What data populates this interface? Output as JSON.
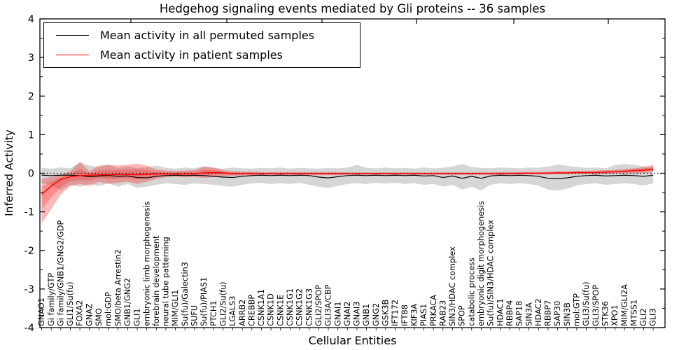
{
  "chart_data": {
    "type": "line",
    "title": "Hedgehog signaling events mediated by Gli proteins -- 36 samples",
    "xlabel": "Cellular Entities",
    "ylabel": "Inferred Activity",
    "ylim": [
      -4,
      4
    ],
    "yticks": [
      -4,
      -3,
      -2,
      -1,
      0,
      1,
      2,
      3,
      4
    ],
    "grid": false,
    "zero_line_style": "dotted",
    "legend_position": "upper left",
    "colors": {
      "permuted": "#000000",
      "patient": "#ff0000",
      "permuted_band": "#808080",
      "patient_band": "#ff0000"
    },
    "top_tick_x": [
      187,
      324,
      460,
      595,
      734,
      869
    ],
    "categories": [
      "GNAO1",
      "Gi family/GTP",
      "Gi family/GNB1/GNG2/GDP",
      "GLI1/Su(fu)",
      "FOXA2",
      "GNAZ",
      "SMO",
      "mol:GDP",
      "SMO/beta Arrestin2",
      "GNB1/GNG2",
      "GLI1",
      "embryonic limb morphogenesis",
      "forebrain development",
      "neural tube patterning",
      "MIM/GLI1",
      "Su(fu)/Galectin3",
      "SUFU",
      "Su(fu)/PIAS1",
      "PTCH1",
      "GLI2/Su(fu)",
      "LGALS3",
      "ARRB2",
      "CREBBP",
      "CSNK1A1",
      "CSNK1D",
      "CSNK1E",
      "CSNK1G1",
      "CSNK1G2",
      "CSNK1G3",
      "GLI2/SPOP",
      "GLI3A/CBP",
      "GNAI1",
      "GNAI2",
      "GNAI3",
      "GNB1",
      "GNG2",
      "GSK3B",
      "IFT172",
      "IFT88",
      "KIF3A",
      "PIAS1",
      "PRKACA",
      "RAB23",
      "SIN3/HDAC complex",
      "SPOP",
      "catabolic process",
      "embryonic digit morphogenesis",
      "Su(fu)/SIN3/HDAC complex",
      "HDAC1",
      "RBBP4",
      "SAP18",
      "SIN3A",
      "HDAC2",
      "RBBP7",
      "SAP30",
      "SIN3B",
      "mol:GTP",
      "GLI3/Su(fu)",
      "GLI3/SPOP",
      "STK36",
      "XPO1",
      "MIM/GLI2A",
      "MTSS1",
      "GLI2",
      "GLI3"
    ],
    "series": [
      {
        "name": "Mean activity in all permuted samples",
        "color": "#000000",
        "values": [
          -0.05,
          -0.06,
          -0.05,
          -0.05,
          -0.06,
          -0.09,
          -0.07,
          -0.06,
          -0.08,
          -0.07,
          -0.11,
          -0.12,
          -0.08,
          -0.06,
          -0.05,
          -0.06,
          -0.05,
          -0.06,
          -0.08,
          -0.1,
          -0.11,
          -0.08,
          -0.06,
          -0.05,
          -0.06,
          -0.05,
          -0.06,
          -0.05,
          -0.06,
          -0.1,
          -0.12,
          -0.09,
          -0.06,
          -0.05,
          -0.06,
          -0.05,
          -0.06,
          -0.05,
          -0.06,
          -0.05,
          -0.07,
          -0.06,
          -0.11,
          -0.07,
          -0.13,
          -0.08,
          -0.13,
          -0.07,
          -0.05,
          -0.06,
          -0.05,
          -0.06,
          -0.08,
          -0.13,
          -0.14,
          -0.12,
          -0.08,
          -0.06,
          -0.05,
          -0.07,
          -0.06,
          -0.05,
          -0.06,
          -0.08,
          -0.05
        ],
        "band_upper": [
          0.14,
          0.12,
          0.15,
          0.13,
          0.28,
          0.2,
          0.16,
          0.22,
          0.14,
          0.18,
          0.13,
          0.16,
          0.2,
          0.14,
          0.12,
          0.15,
          0.13,
          0.18,
          0.14,
          0.12,
          0.15,
          0.13,
          0.12,
          0.14,
          0.13,
          0.15,
          0.12,
          0.14,
          0.13,
          0.12,
          0.14,
          0.13,
          0.15,
          0.22,
          0.14,
          0.13,
          0.15,
          0.13,
          0.14,
          0.12,
          0.15,
          0.13,
          0.14,
          0.18,
          0.24,
          0.16,
          0.14,
          0.13,
          0.15,
          0.14,
          0.13,
          0.15,
          0.14,
          0.18,
          0.22,
          0.2,
          0.16,
          0.14,
          0.15,
          0.13,
          0.21,
          0.24,
          0.22,
          0.18,
          0.15
        ],
        "band_lower": [
          -0.26,
          -0.3,
          -0.45,
          -0.3,
          -0.35,
          -0.28,
          -0.33,
          -0.26,
          -0.35,
          -0.28,
          -0.38,
          -0.35,
          -0.3,
          -0.26,
          -0.28,
          -0.3,
          -0.26,
          -0.28,
          -0.3,
          -0.33,
          -0.35,
          -0.3,
          -0.26,
          -0.25,
          -0.28,
          -0.26,
          -0.28,
          -0.25,
          -0.3,
          -0.35,
          -0.38,
          -0.33,
          -0.28,
          -0.26,
          -0.28,
          -0.25,
          -0.27,
          -0.25,
          -0.28,
          -0.26,
          -0.3,
          -0.28,
          -0.35,
          -0.3,
          -0.42,
          -0.35,
          -0.44,
          -0.3,
          -0.26,
          -0.28,
          -0.26,
          -0.28,
          -0.32,
          -0.42,
          -0.45,
          -0.4,
          -0.32,
          -0.28,
          -0.26,
          -0.3,
          -0.28,
          -0.26,
          -0.28,
          -0.32,
          -0.26
        ]
      },
      {
        "name": "Mean activity in patient samples",
        "color": "#ff0000",
        "values": [
          -0.55,
          -0.33,
          -0.16,
          -0.09,
          -0.06,
          -0.05,
          -0.04,
          -0.04,
          -0.03,
          -0.03,
          -0.04,
          -0.03,
          -0.02,
          -0.02,
          -0.02,
          -0.02,
          -0.01,
          0.01,
          0.02,
          0.01,
          -0.01,
          -0.01,
          -0.01,
          -0.01,
          -0.01,
          -0.01,
          -0.01,
          -0.01,
          -0.01,
          -0.01,
          -0.01,
          -0.01,
          -0.01,
          -0.01,
          -0.01,
          -0.01,
          -0.01,
          -0.01,
          -0.01,
          -0.01,
          -0.01,
          -0.01,
          -0.01,
          -0.01,
          -0.01,
          -0.01,
          -0.01,
          -0.01,
          -0.01,
          -0.01,
          0.0,
          0.0,
          0.0,
          0.0,
          0.01,
          0.01,
          0.02,
          0.02,
          0.02,
          0.03,
          0.04,
          0.05,
          0.07,
          0.08,
          0.1
        ],
        "band_upper": [
          -0.14,
          -0.1,
          -0.04,
          0.05,
          0.3,
          0.05,
          0.2,
          0.22,
          0.2,
          0.22,
          0.25,
          0.2,
          0.1,
          0.07,
          0.06,
          0.07,
          0.08,
          0.17,
          0.15,
          0.08,
          0.05,
          0.04,
          0.04,
          0.03,
          0.03,
          0.03,
          0.03,
          0.03,
          0.03,
          0.03,
          0.03,
          0.03,
          0.02,
          0.02,
          0.02,
          0.02,
          0.02,
          0.02,
          0.02,
          0.02,
          0.02,
          0.02,
          0.02,
          0.02,
          0.02,
          0.02,
          0.02,
          0.02,
          0.03,
          0.03,
          0.03,
          0.03,
          0.03,
          0.04,
          0.05,
          0.05,
          0.06,
          0.06,
          0.07,
          0.08,
          0.09,
          0.11,
          0.13,
          0.16,
          0.22
        ],
        "band_lower": [
          -1.3,
          -0.93,
          -0.55,
          -0.33,
          -0.28,
          -0.33,
          -0.22,
          -0.28,
          -0.25,
          -0.22,
          -0.28,
          -0.22,
          -0.15,
          -0.1,
          -0.09,
          -0.1,
          -0.1,
          -0.12,
          -0.1,
          -0.08,
          -0.07,
          -0.06,
          -0.06,
          -0.05,
          -0.05,
          -0.05,
          -0.05,
          -0.05,
          -0.05,
          -0.05,
          -0.05,
          -0.05,
          -0.04,
          -0.04,
          -0.04,
          -0.04,
          -0.04,
          -0.04,
          -0.04,
          -0.04,
          -0.04,
          -0.04,
          -0.04,
          -0.04,
          -0.04,
          -0.04,
          -0.04,
          -0.04,
          -0.04,
          -0.04,
          -0.03,
          -0.03,
          -0.03,
          -0.03,
          -0.03,
          -0.03,
          -0.02,
          -0.02,
          -0.02,
          -0.02,
          -0.01,
          0.0,
          0.0,
          0.01,
          0.03
        ],
        "inner_band_fraction": 0.5
      }
    ]
  },
  "legend": {
    "entries": [
      {
        "label": "Mean activity in all permuted samples",
        "color": "#000000"
      },
      {
        "label": "Mean activity in patient samples",
        "color": "#ff0000"
      }
    ]
  }
}
